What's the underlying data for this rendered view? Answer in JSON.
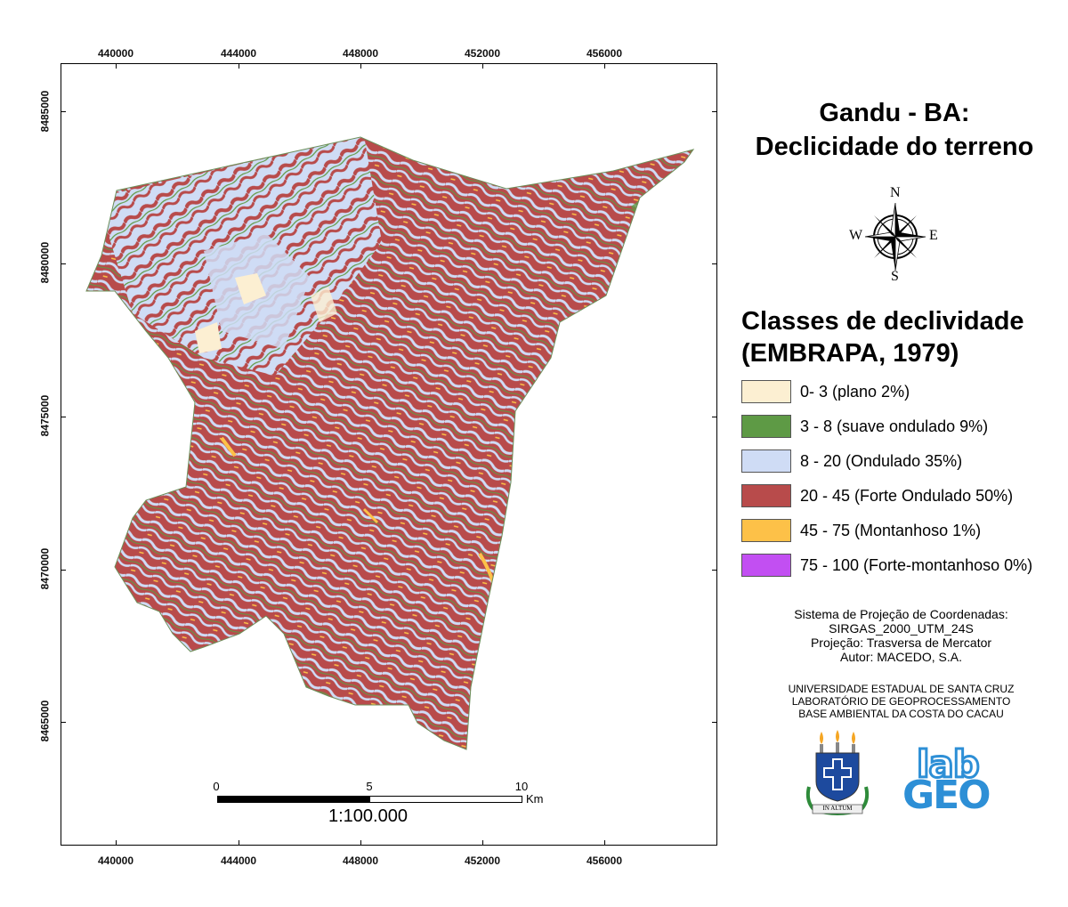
{
  "title_line1": "Gandu - BA:",
  "title_line2": "Declicidade do terreno",
  "compass": {
    "n": "N",
    "s": "S",
    "e": "E",
    "w": "W",
    "icon": "compass-rose-icon"
  },
  "grid": {
    "x_labels": [
      "440000",
      "444000",
      "448000",
      "452000",
      "456000"
    ],
    "y_labels": [
      "8485000",
      "8480000",
      "8475000",
      "8470000",
      "8465000"
    ]
  },
  "legend": {
    "title_line1": "Classes de declividade",
    "title_line2": "(EMBRAPA, 1979)",
    "items": [
      {
        "label": "0- 3 (plano 2%)",
        "color": "#fcefd2"
      },
      {
        "label": "3 - 8 (suave ondulado 9%)",
        "color": "#5e9a45"
      },
      {
        "label": "8 - 20 (Ondulado 35%)",
        "color": "#cfdcf5"
      },
      {
        "label": "20 - 45 (Forte Ondulado 50%)",
        "color": "#b84b4b"
      },
      {
        "label": "45 - 75 (Montanhoso 1%)",
        "color": "#fdc148"
      },
      {
        "label": "75 - 100 (Forte-montanhoso 0%)",
        "color": "#c24ff2"
      }
    ]
  },
  "projection": {
    "line1": "Sistema de Projeção de Coordenadas:",
    "line2": "SIRGAS_2000_UTM_24S",
    "line3": "Projeção: Trasversa de Mercator",
    "line4": "Autor: MACEDO, S.A."
  },
  "institution": {
    "line1": "UNIVERSIDADE ESTADUAL DE SANTA CRUZ",
    "line2": "LABORATÓRIO DE GEOPROCESSAMENTO",
    "line3": "BASE AMBIENTAL DA COSTA DO CACAU",
    "uesc_motto": "IN ALTUM",
    "labgeo_line1": "lab",
    "labgeo_line2": "GEO"
  },
  "scale": {
    "ticks": [
      "0",
      "5",
      "10"
    ],
    "unit": "Km",
    "ratio": "1:100.000"
  }
}
